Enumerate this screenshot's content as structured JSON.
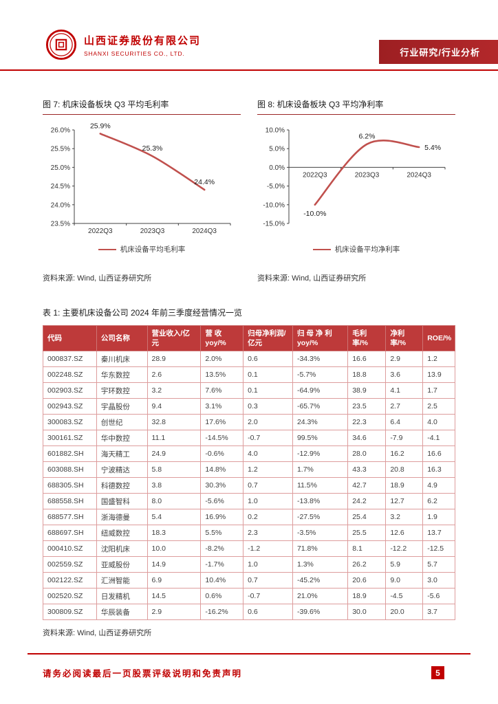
{
  "header": {
    "company_name_cn": "山西证券股份有限公司",
    "company_name_en": "SHANXI SECURITIES CO., LTD.",
    "banner_label": "行业研究/行业分析",
    "brand_color": "#c00000"
  },
  "charts": [
    {
      "figure_label": "图 7: 机床设备板块 Q3 平均毛利率",
      "legend_label": "机床设备平均毛利率",
      "source": "资料来源: Wind, 山西证券研究所",
      "chart_data": {
        "type": "line",
        "categories": [
          "2022Q3",
          "2023Q3",
          "2024Q3"
        ],
        "values": [
          25.9,
          25.3,
          24.4
        ],
        "data_labels": [
          "25.9%",
          "25.3%",
          "24.4%"
        ],
        "ylim": [
          23.5,
          26.0
        ],
        "ytick_step": 0.5,
        "line_color": "#c0504d",
        "grid": false,
        "legend_position": "bottom"
      }
    },
    {
      "figure_label": "图 8: 机床设备板块 Q3 平均净利率",
      "legend_label": "机床设备平均净利率",
      "source": "资料来源: Wind, 山西证券研究所",
      "chart_data": {
        "type": "line",
        "categories": [
          "2022Q3",
          "2023Q3",
          "2024Q3"
        ],
        "values": [
          -10.0,
          6.2,
          5.4
        ],
        "data_labels": [
          "-10.0%",
          "6.2%",
          "5.4%"
        ],
        "ylim": [
          -15.0,
          10.0
        ],
        "ytick_step": 5.0,
        "line_color": "#c0504d",
        "grid": false,
        "legend_position": "bottom"
      }
    }
  ],
  "table": {
    "title": "表 1: 主要机床设备公司 2024 年前三季度经营情况一览",
    "source": "资料来源: Wind, 山西证券研究所",
    "headers": [
      "代码",
      "公司名称",
      "营业收入/亿元",
      "营  收\nyoy/%",
      "归母净利润/\n亿元",
      "归 母 净 利\nyoy/%",
      "毛利率/%",
      "净利率/%",
      "ROE/%"
    ],
    "rows": [
      [
        "000837.SZ",
        "秦川机床",
        "28.9",
        "2.0%",
        "0.6",
        "-34.3%",
        "16.6",
        "2.9",
        "1.2"
      ],
      [
        "002248.SZ",
        "华东数控",
        "2.6",
        "13.5%",
        "0.1",
        "-5.7%",
        "18.8",
        "3.6",
        "13.9"
      ],
      [
        "002903.SZ",
        "宇环数控",
        "3.2",
        "7.6%",
        "0.1",
        "-64.9%",
        "38.9",
        "4.1",
        "1.7"
      ],
      [
        "002943.SZ",
        "宇晶股份",
        "9.4",
        "3.1%",
        "0.3",
        "-65.7%",
        "23.5",
        "2.7",
        "2.5"
      ],
      [
        "300083.SZ",
        "创世纪",
        "32.8",
        "17.6%",
        "2.0",
        "24.3%",
        "22.3",
        "6.4",
        "4.0"
      ],
      [
        "300161.SZ",
        "华中数控",
        "11.1",
        "-14.5%",
        "-0.7",
        "99.5%",
        "34.6",
        "-7.9",
        "-4.1"
      ],
      [
        "601882.SH",
        "海天精工",
        "24.9",
        "-0.6%",
        "4.0",
        "-12.9%",
        "28.0",
        "16.2",
        "16.6"
      ],
      [
        "603088.SH",
        "宁波精达",
        "5.8",
        "14.8%",
        "1.2",
        "1.7%",
        "43.3",
        "20.8",
        "16.3"
      ],
      [
        "688305.SH",
        "科德数控",
        "3.8",
        "30.3%",
        "0.7",
        "11.5%",
        "42.7",
        "18.9",
        "4.9"
      ],
      [
        "688558.SH",
        "国盛智科",
        "8.0",
        "-5.6%",
        "1.0",
        "-13.8%",
        "24.2",
        "12.7",
        "6.2"
      ],
      [
        "688577.SH",
        "浙海德曼",
        "5.4",
        "16.9%",
        "0.2",
        "-27.5%",
        "25.4",
        "3.2",
        "1.9"
      ],
      [
        "688697.SH",
        "纽威数控",
        "18.3",
        "5.5%",
        "2.3",
        "-3.5%",
        "25.5",
        "12.6",
        "13.7"
      ],
      [
        "000410.SZ",
        "沈阳机床",
        "10.0",
        "-8.2%",
        "-1.2",
        "71.8%",
        "8.1",
        "-12.2",
        "-12.5"
      ],
      [
        "002559.SZ",
        "亚威股份",
        "14.9",
        "-1.7%",
        "1.0",
        "1.3%",
        "26.2",
        "5.9",
        "5.7"
      ],
      [
        "002122.SZ",
        "汇洲智能",
        "6.9",
        "10.4%",
        "0.7",
        "-45.2%",
        "20.6",
        "9.0",
        "3.0"
      ],
      [
        "002520.SZ",
        "日发精机",
        "14.5",
        "0.6%",
        "-0.7",
        "21.0%",
        "18.9",
        "-4.5",
        "-5.6"
      ],
      [
        "300809.SZ",
        "华辰装备",
        "2.9",
        "-16.2%",
        "0.6",
        "-39.6%",
        "30.0",
        "20.0",
        "3.7"
      ]
    ]
  },
  "footer": {
    "disclaimer": "请务必阅读最后一页股票评级说明和免责声明",
    "page_number": "5"
  }
}
